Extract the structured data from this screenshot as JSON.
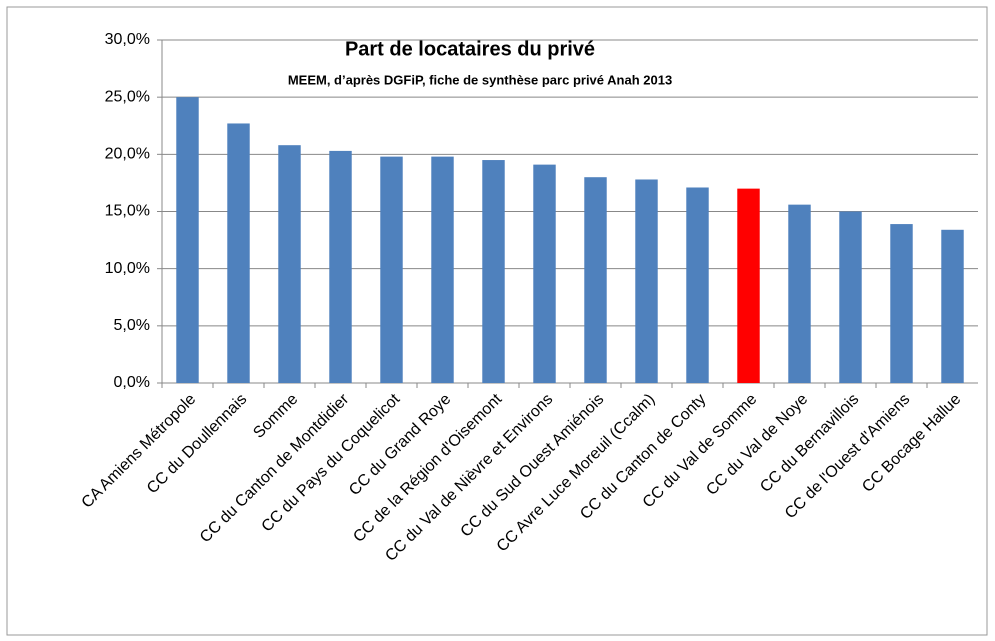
{
  "chart_data": {
    "type": "bar",
    "title": "Part de locataires du privé",
    "subtitle": "MEEM, d’après DGFiP, fiche de synthèse parc privé Anah 2013",
    "categories": [
      "CA Amiens Métropole",
      "CC du Doullennais",
      "Somme",
      "CC du Canton de Montdidier",
      "CC du Pays du Coquelicot",
      "CC du Grand Roye",
      "CC de la Région d'Oisemont",
      "CC du Val de Nièvre et Environs",
      "CC du Sud Ouest Amiénois",
      "CC Avre Luce Moreuil (Ccalm)",
      "CC du Canton de Conty",
      "CC du Val de Somme",
      "CC du Val de Noye",
      "CC du Bernavillois",
      "CC de l'Ouest d'Amiens",
      "CC Bocage Hallue"
    ],
    "values": [
      25.0,
      22.7,
      20.8,
      20.3,
      19.8,
      19.8,
      19.5,
      19.1,
      18.0,
      17.8,
      17.1,
      17.0,
      15.6,
      15.0,
      13.9,
      13.4
    ],
    "colors": [
      "#4f81bd",
      "#4f81bd",
      "#4f81bd",
      "#4f81bd",
      "#4f81bd",
      "#4f81bd",
      "#4f81bd",
      "#4f81bd",
      "#4f81bd",
      "#4f81bd",
      "#4f81bd",
      "#ff0000",
      "#4f81bd",
      "#4f81bd",
      "#4f81bd",
      "#4f81bd"
    ],
    "ylim": [
      0,
      30
    ],
    "yticks": [
      {
        "value": 0,
        "label": "0,0%"
      },
      {
        "value": 5,
        "label": "5,0%"
      },
      {
        "value": 10,
        "label": "10,0%"
      },
      {
        "value": 15,
        "label": "15,0%"
      },
      {
        "value": 20,
        "label": "20,0%"
      },
      {
        "value": 25,
        "label": "25,0%"
      },
      {
        "value": 30,
        "label": "30,0%"
      }
    ],
    "grid": true
  }
}
